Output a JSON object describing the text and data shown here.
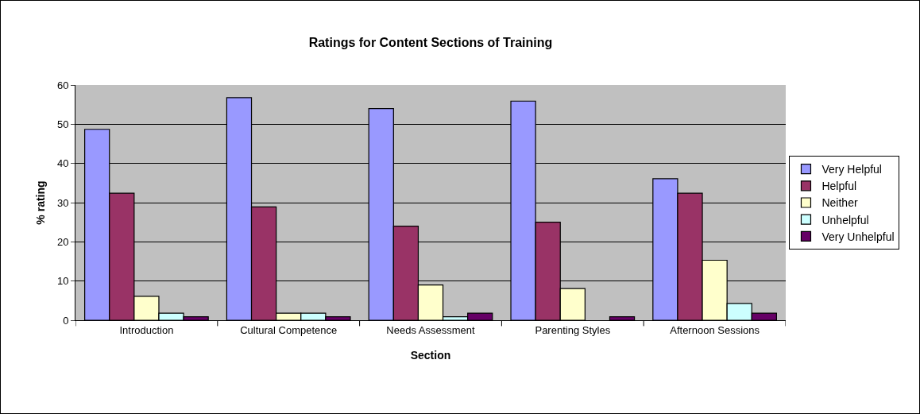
{
  "chart_data": {
    "type": "bar",
    "title": "Ratings for Content Sections of Training",
    "xlabel": "Section",
    "ylabel": "% rating",
    "categories": [
      "Introduction",
      "Cultural Competence",
      "Needs Assessment",
      "Parenting Styles",
      "Afternoon Sessions"
    ],
    "series": [
      {
        "name": "Very Helpful",
        "color": "#9999ff",
        "values": [
          48.7,
          56.8,
          54.0,
          55.9,
          36.1
        ]
      },
      {
        "name": "Helpful",
        "color": "#993366",
        "values": [
          32.4,
          28.9,
          24.0,
          25.0,
          32.4
        ]
      },
      {
        "name": "Neither",
        "color": "#ffffcc",
        "values": [
          6.1,
          1.8,
          9.0,
          8.1,
          15.3
        ]
      },
      {
        "name": "Unhelpful",
        "color": "#ccffff",
        "values": [
          1.8,
          1.8,
          0.9,
          null,
          4.3
        ]
      },
      {
        "name": "Very Unhelpful",
        "color": "#660066",
        "values": [
          0.9,
          0.9,
          1.8,
          0.9,
          1.8
        ]
      }
    ],
    "ylim": [
      0,
      60
    ],
    "yticks": [
      0,
      10,
      20,
      30,
      40,
      50,
      60
    ],
    "grid": "y",
    "legend": "right"
  }
}
